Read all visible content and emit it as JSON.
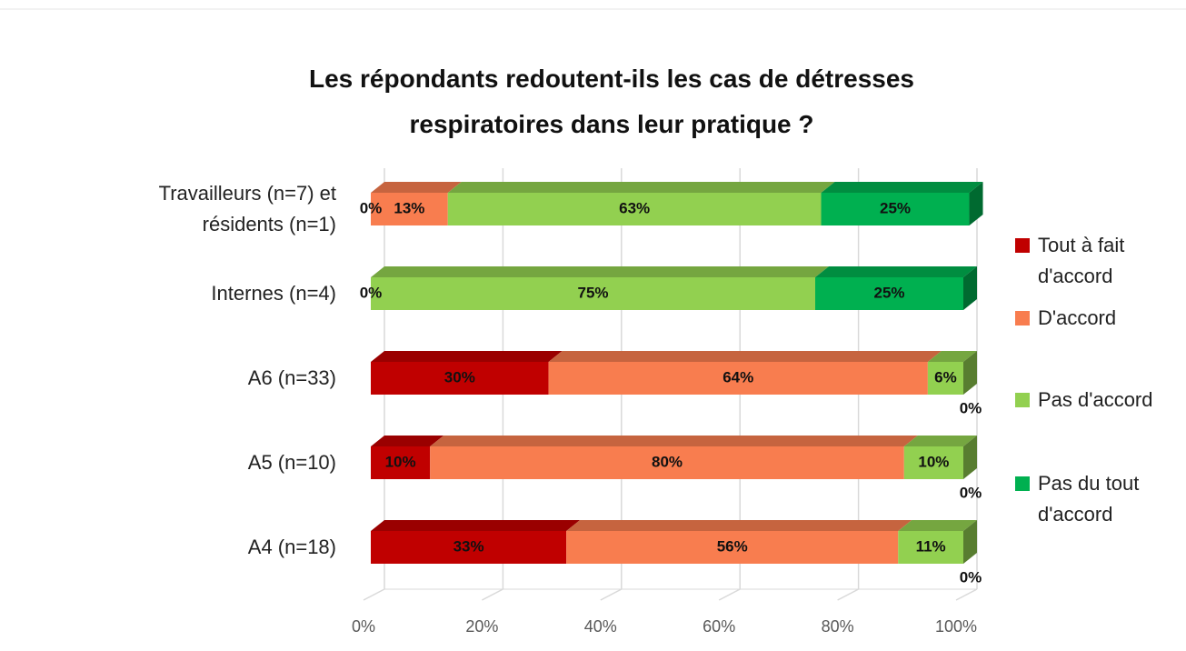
{
  "chart_data": {
    "type": "bar",
    "orientation": "horizontal",
    "stacked": true,
    "title": "Les répondants redoutent-ils les cas de détresses respiratoires dans leur pratique ?",
    "categories": [
      "Travailleurs (n=7) et résidents (n=1)",
      "Internes (n=4)",
      "A6 (n=33)",
      "A5 (n=10)",
      "A4 (n=18)"
    ],
    "series": [
      {
        "name": "Tout à fait d'accord",
        "color": "#c00000",
        "values": [
          0,
          0,
          30,
          10,
          33
        ],
        "value_labels": [
          "0%",
          "0%",
          "30%",
          "10%",
          "33%"
        ]
      },
      {
        "name": "D'accord",
        "color": "#f87d4f",
        "values": [
          13,
          null,
          64,
          80,
          56
        ],
        "value_labels": [
          "13%",
          null,
          "64%",
          "80%",
          "56%"
        ]
      },
      {
        "name": "Pas d'accord",
        "color": "#92d050",
        "values": [
          63,
          75,
          6,
          10,
          11
        ],
        "value_labels": [
          "63%",
          "75%",
          "6%",
          "10%",
          "11%"
        ]
      },
      {
        "name": "Pas du tout d'accord",
        "color": "#00b050",
        "values": [
          25,
          25,
          0,
          0,
          0
        ],
        "value_labels": [
          "25%",
          "25%",
          "0%",
          "0%",
          "0%"
        ]
      }
    ],
    "xlim": [
      0,
      100
    ],
    "xticks": [
      {
        "value": 0,
        "label": "0%"
      },
      {
        "value": 20,
        "label": "20%"
      },
      {
        "value": 40,
        "label": "40%"
      },
      {
        "value": 60,
        "label": "60%"
      },
      {
        "value": 80,
        "label": "80%"
      },
      {
        "value": 100,
        "label": "100%"
      }
    ],
    "grid": true,
    "legend": "right"
  }
}
